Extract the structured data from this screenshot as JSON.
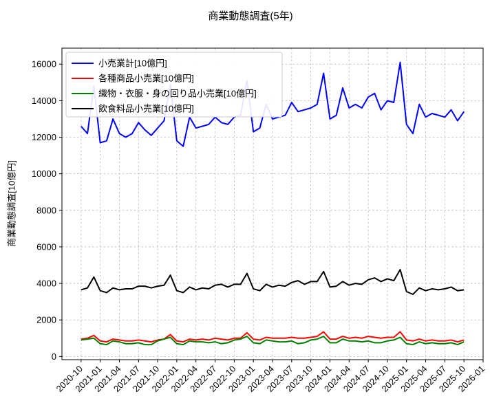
{
  "title": "商業動態調査(5年)",
  "chart_data": {
    "type": "line",
    "title": "商業動態調査(5年)",
    "xlabel": "",
    "ylabel": "商業動態調査[10億円]",
    "grid": true,
    "legend_position": "upper-left",
    "ylim": [
      -175,
      16875
    ],
    "xlim": [
      -3,
      63
    ],
    "yticks": [
      0,
      2000,
      4000,
      6000,
      8000,
      10000,
      12000,
      14000,
      16000
    ],
    "x_tick_index": [
      0,
      3,
      6,
      9,
      12,
      15,
      18,
      21,
      24,
      27,
      30,
      33,
      36,
      39,
      42,
      45,
      48,
      51,
      54,
      57,
      60,
      63
    ],
    "x_tick_labels": [
      "2020-10",
      "2021-01",
      "2021-04",
      "2021-07",
      "2021-10",
      "2022-01",
      "2022-04",
      "2022-07",
      "2022-10",
      "2023-01",
      "2023-04",
      "2023-07",
      "2023-10",
      "2024-01",
      "2024-04",
      "2024-07",
      "2024-10",
      "2025-01",
      "2025-04",
      "2025-07",
      "2025-10",
      "2026-01"
    ],
    "x": [
      "2020-10",
      "2020-11",
      "2020-12",
      "2021-01",
      "2021-02",
      "2021-03",
      "2021-04",
      "2021-05",
      "2021-06",
      "2021-07",
      "2021-08",
      "2021-09",
      "2021-10",
      "2021-11",
      "2021-12",
      "2022-01",
      "2022-02",
      "2022-03",
      "2022-04",
      "2022-05",
      "2022-06",
      "2022-07",
      "2022-08",
      "2022-09",
      "2022-10",
      "2022-11",
      "2022-12",
      "2023-01",
      "2023-02",
      "2023-03",
      "2023-04",
      "2023-05",
      "2023-06",
      "2023-07",
      "2023-08",
      "2023-09",
      "2023-10",
      "2023-11",
      "2023-12",
      "2024-01",
      "2024-02",
      "2024-03",
      "2024-04",
      "2024-05",
      "2024-06",
      "2024-07",
      "2024-08",
      "2024-09",
      "2024-10",
      "2024-11",
      "2024-12",
      "2025-01",
      "2025-02",
      "2025-03",
      "2025-04",
      "2025-05",
      "2025-06",
      "2025-07",
      "2025-08",
      "2025-09",
      "2025-10"
    ],
    "series": [
      {
        "name": "小売業計[10億円]",
        "color": "#0000ff",
        "values": [
          12600,
          12200,
          14800,
          11700,
          11800,
          13000,
          12200,
          12000,
          12200,
          12800,
          12400,
          12100,
          12500,
          12900,
          14900,
          11800,
          11500,
          13100,
          12500,
          12600,
          12700,
          13100,
          12800,
          12700,
          13100,
          13200,
          15100,
          12300,
          12500,
          13800,
          13000,
          13100,
          13200,
          13900,
          13400,
          13500,
          13600,
          13800,
          15500,
          13000,
          13200,
          14700,
          13600,
          13800,
          13600,
          14200,
          14400,
          13500,
          14000,
          13900,
          16100,
          12700,
          12200,
          13800,
          13100,
          13300,
          13200,
          13100,
          13500,
          12900,
          13400
        ]
      },
      {
        "name": "各種商品小売業[10億円]",
        "color": "#ff0000",
        "values": [
          950,
          1000,
          1150,
          850,
          800,
          950,
          900,
          850,
          850,
          900,
          850,
          800,
          900,
          950,
          1200,
          850,
          800,
          950,
          900,
          950,
          900,
          1000,
          950,
          900,
          1000,
          1000,
          1300,
          950,
          900,
          1050,
          1000,
          1000,
          1000,
          1050,
          1000,
          1000,
          1050,
          1100,
          1350,
          950,
          950,
          1100,
          1000,
          1050,
          1000,
          1100,
          1050,
          1000,
          1050,
          1050,
          1350,
          900,
          850,
          950,
          850,
          900,
          850,
          850,
          900,
          800,
          900
        ]
      },
      {
        "name": "織物・衣服・身の回り品小売業[10億円]",
        "color": "#008000",
        "values": [
          900,
          950,
          1000,
          700,
          650,
          850,
          800,
          700,
          700,
          750,
          650,
          650,
          850,
          950,
          1050,
          700,
          650,
          850,
          800,
          800,
          750,
          800,
          700,
          750,
          900,
          950,
          1100,
          750,
          700,
          900,
          850,
          800,
          800,
          850,
          700,
          750,
          900,
          950,
          1100,
          750,
          750,
          950,
          850,
          850,
          800,
          850,
          750,
          750,
          850,
          900,
          1050,
          700,
          650,
          800,
          700,
          750,
          700,
          700,
          750,
          650,
          800
        ]
      },
      {
        "name": "飲食料品小売業[10億円]",
        "color": "#000000",
        "values": [
          3650,
          3750,
          4350,
          3600,
          3500,
          3750,
          3650,
          3700,
          3700,
          3850,
          3850,
          3750,
          3850,
          3900,
          4450,
          3600,
          3500,
          3800,
          3650,
          3750,
          3700,
          3900,
          3950,
          3800,
          3950,
          3950,
          4550,
          3700,
          3600,
          3950,
          3800,
          3900,
          3850,
          4050,
          4150,
          3950,
          4100,
          4100,
          4650,
          3800,
          3850,
          4100,
          3900,
          4000,
          3950,
          4200,
          4300,
          4100,
          4250,
          4150,
          4750,
          3550,
          3400,
          3750,
          3600,
          3700,
          3650,
          3700,
          3800,
          3600,
          3650
        ]
      }
    ]
  }
}
